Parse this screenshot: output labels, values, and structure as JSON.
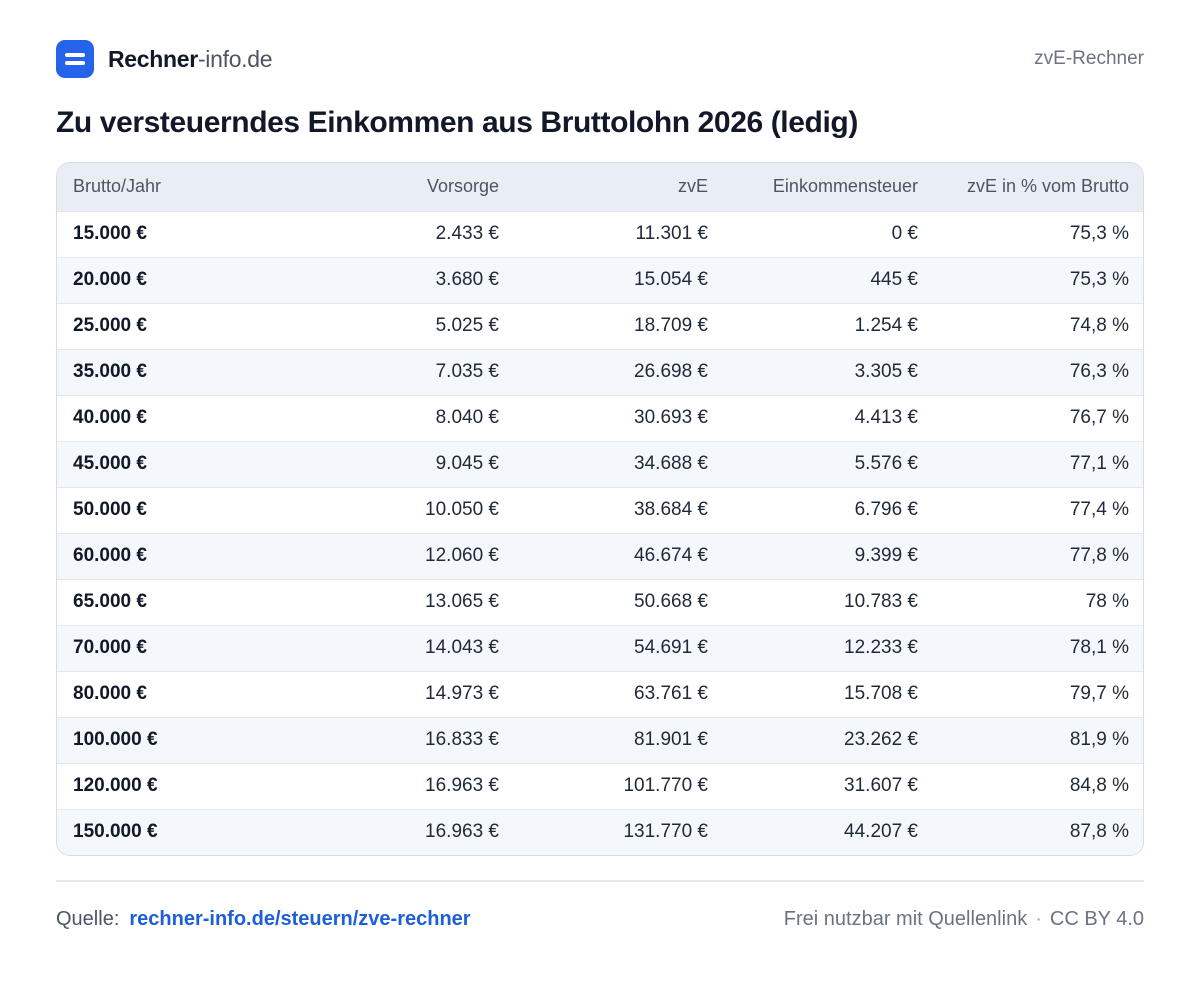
{
  "header": {
    "brand_strong": "Rechner",
    "brand_light": "-info.de",
    "right_label": "zvE-Rechner"
  },
  "page": {
    "title": "Zu versteuerndes Einkommen aus Bruttolohn 2026 (ledig)"
  },
  "table": {
    "columns": [
      "Brutto/Jahr",
      "Vorsorge",
      "zvE",
      "Einkommensteuer",
      "zvE in % vom Brutto"
    ],
    "rows": [
      [
        "15.000 €",
        "2.433 €",
        "11.301 €",
        "0 €",
        "75,3 %"
      ],
      [
        "20.000 €",
        "3.680 €",
        "15.054 €",
        "445 €",
        "75,3 %"
      ],
      [
        "25.000 €",
        "5.025 €",
        "18.709 €",
        "1.254 €",
        "74,8 %"
      ],
      [
        "35.000 €",
        "7.035 €",
        "26.698 €",
        "3.305 €",
        "76,3 %"
      ],
      [
        "40.000 €",
        "8.040 €",
        "30.693 €",
        "4.413 €",
        "76,7 %"
      ],
      [
        "45.000 €",
        "9.045 €",
        "34.688 €",
        "5.576 €",
        "77,1 %"
      ],
      [
        "50.000 €",
        "10.050 €",
        "38.684 €",
        "6.796 €",
        "77,4 %"
      ],
      [
        "60.000 €",
        "12.060 €",
        "46.674 €",
        "9.399 €",
        "77,8 %"
      ],
      [
        "65.000 €",
        "13.065 €",
        "50.668 €",
        "10.783 €",
        "78 %"
      ],
      [
        "70.000 €",
        "14.043 €",
        "54.691 €",
        "12.233 €",
        "78,1 %"
      ],
      [
        "80.000 €",
        "14.973 €",
        "63.761 €",
        "15.708 €",
        "79,7 %"
      ],
      [
        "100.000 €",
        "16.833 €",
        "81.901 €",
        "23.262 €",
        "81,9 %"
      ],
      [
        "120.000 €",
        "16.963 €",
        "101.770 €",
        "31.607 €",
        "84,8 %"
      ],
      [
        "150.000 €",
        "16.963 €",
        "131.770 €",
        "44.207 €",
        "87,8 %"
      ]
    ]
  },
  "footer": {
    "source_label": "Quelle:",
    "source_link": "rechner-info.de/steuern/zve-rechner",
    "license_text": "Frei nutzbar mit Quellenlink",
    "separator": "·",
    "license": "CC BY 4.0"
  },
  "colors": {
    "brand": "#2563eb",
    "link": "#1d5fd6",
    "header_bg": "#e9eef5",
    "row_alt": "#f4f7fb"
  }
}
